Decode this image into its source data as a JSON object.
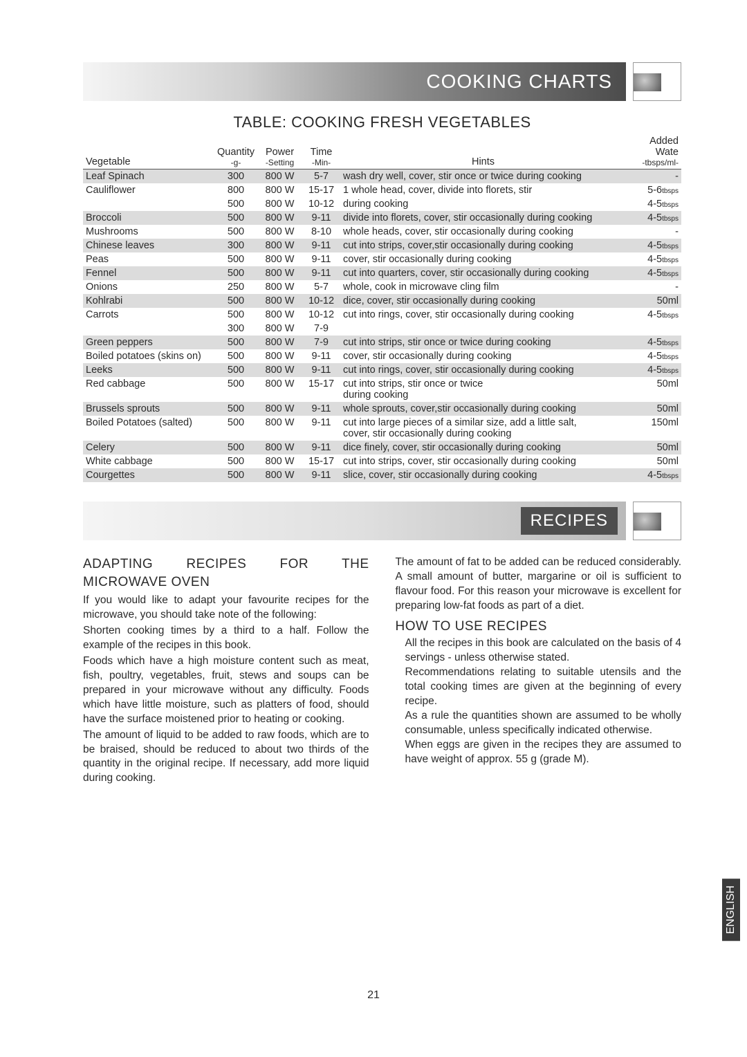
{
  "banner1": {
    "title": "COOKING CHARTS"
  },
  "tableTitle": "TABLE: COOKING FRESH VEGETABLES",
  "headers": {
    "veg": "Vegetable",
    "qty": "Quantity",
    "qtySub": "-g-",
    "power": "Power",
    "powerSub": "-Setting",
    "time": "Time",
    "timeSub": "-Min-",
    "hints": "Hints",
    "water": "Added Wate",
    "waterSub": "-tbsps/ml-"
  },
  "rows": [
    {
      "shade": true,
      "veg": "Leaf Spinach",
      "qty": "300",
      "power": "800 W",
      "time": "5-7",
      "hints": "wash dry well, cover, stir once or twice during cooking",
      "water": "-"
    },
    {
      "shade": false,
      "veg": "Cauliflower",
      "qty": "800",
      "power": "800 W",
      "time": "15-17",
      "hints": "1 whole head, cover, divide into florets, stir",
      "water": "5-6",
      "u": "tbsps"
    },
    {
      "shade": false,
      "veg": "",
      "qty": "500",
      "power": "800 W",
      "time": "10-12",
      "hints": "during cooking",
      "water": "4-5",
      "u": "tbsps"
    },
    {
      "shade": true,
      "veg": "Broccoli",
      "qty": "500",
      "power": "800 W",
      "time": "9-11",
      "hints": "divide into florets, cover, stir occasionally during cooking",
      "water": "4-5",
      "u": "tbsps"
    },
    {
      "shade": false,
      "veg": "Mushrooms",
      "qty": "500",
      "power": "800 W",
      "time": "8-10",
      "hints": "whole heads, cover, stir occasionally during cooking",
      "water": "-"
    },
    {
      "shade": true,
      "veg": "Chinese leaves",
      "qty": "300",
      "power": "800 W",
      "time": "9-11",
      "hints": "cut into strips, cover,stir occasionally during cooking",
      "water": "4-5",
      "u": "tbsps"
    },
    {
      "shade": false,
      "veg": "Peas",
      "qty": "500",
      "power": "800 W",
      "time": "9-11",
      "hints": "cover, stir occasionally during cooking",
      "water": "4-5",
      "u": "tbsps"
    },
    {
      "shade": true,
      "veg": "Fennel",
      "qty": "500",
      "power": "800 W",
      "time": "9-11",
      "hints": "cut into quarters, cover, stir occasionally during cooking",
      "water": "4-5",
      "u": "tbsps"
    },
    {
      "shade": false,
      "veg": "Onions",
      "qty": "250",
      "power": "800 W",
      "time": "5-7",
      "hints": "whole, cook in microwave cling film",
      "water": "-"
    },
    {
      "shade": true,
      "veg": "Kohlrabi",
      "qty": "500",
      "power": "800 W",
      "time": "10-12",
      "hints": "dice, cover, stir occasionally during cooking",
      "water": "50ml"
    },
    {
      "shade": false,
      "veg": "Carrots",
      "qty": "500",
      "power": "800 W",
      "time": "10-12",
      "hints": "cut into rings, cover, stir occasionally during cooking",
      "water": "4-5",
      "u": "tbsps"
    },
    {
      "shade": false,
      "veg": "",
      "qty": "300",
      "power": "800 W",
      "time": "7-9",
      "hints": "",
      "water": ""
    },
    {
      "shade": true,
      "veg": "Green peppers",
      "qty": "500",
      "power": "800 W",
      "time": "7-9",
      "hints": "cut into strips, stir once or twice during cooking",
      "water": "4-5",
      "u": "tbsps"
    },
    {
      "shade": false,
      "veg": "Boiled potatoes (skins on)",
      "qty": "500",
      "power": "800 W",
      "time": "9-11",
      "hints": "cover, stir occasionally during cooking",
      "water": "4-5",
      "u": "tbsps"
    },
    {
      "shade": true,
      "veg": "Leeks",
      "qty": "500",
      "power": "800 W",
      "time": "9-11",
      "hints": "cut into rings, cover, stir occasionally during cooking",
      "water": "4-5",
      "u": "tbsps"
    },
    {
      "shade": false,
      "veg": "Red cabbage",
      "qty": "500",
      "power": "800 W",
      "time": "15-17",
      "hints": "cut into strips, stir once or twice\n during cooking",
      "water": "50ml"
    },
    {
      "shade": true,
      "veg": "Brussels sprouts",
      "qty": "500",
      "power": "800 W",
      "time": "9-11",
      "hints": "whole sprouts, cover,stir occasionally during cooking",
      "water": "50ml"
    },
    {
      "shade": false,
      "veg": "Boiled Potatoes (salted)",
      "qty": "500",
      "power": "800 W",
      "time": "9-11",
      "hints": "cut into large pieces of a similar size, add a little salt,\ncover, stir occasionally during cooking",
      "water": "150ml"
    },
    {
      "shade": true,
      "veg": "Celery",
      "qty": "500",
      "power": "800 W",
      "time": "9-11",
      "hints": "dice finely, cover, stir occasionally during cooking",
      "water": "50ml"
    },
    {
      "shade": false,
      "veg": "White cabbage",
      "qty": "500",
      "power": "800 W",
      "time": "15-17",
      "hints": "cut into strips, cover, stir occasionally during cooking",
      "water": "50ml"
    },
    {
      "shade": true,
      "veg": "Courgettes",
      "qty": "500",
      "power": "800 W",
      "time": "9-11",
      "hints": "slice, cover, stir occasionally during cooking",
      "water": "4-5",
      "u": "tbsps"
    }
  ],
  "banner2": {
    "title": "RECIPES"
  },
  "left": {
    "h": "ADAPTING RECIPES FOR THE MICROWAVE OVEN",
    "p1": "If you would like to adapt your favourite recipes for the microwave, you should take note of the following:",
    "p2": "Shorten cooking times by a third to a half. Follow the example of the recipes in this book.",
    "p3": "Foods which have a high moisture content such as meat, fish, poultry, vegetables, fruit, stews and soups can be prepared in your microwave without any difficulty. Foods which have little moisture, such as platters of food, should have the surface moistened prior to heating or cooking.",
    "p4": "The amount of liquid to be added to raw foods, which are to be braised, should be reduced to about two thirds of the quantity in the original recipe. If necessary, add more liquid during cooking."
  },
  "right": {
    "p1": "The amount of fat to be added can be reduced considerably. A small amount of butter, margarine or oil is sufficient to flavour food. For this reason your microwave is excellent for preparing low-fat foods as part of a diet.",
    "h": "HOW TO USE RECIPES",
    "li1": "All the recipes in this book are calculated on the basis of 4 servings - unless otherwise stated.",
    "li2": "Recommendations relating to suitable utensils and the total cooking times are given at the beginning of every recipe.",
    "li3": "As a rule the quantities shown are assumed to be wholly consumable, unless specifically indicated otherwise.",
    "li4": "When eggs are given in the recipes they are assumed to have weight of approx. 55 g (grade M)."
  },
  "sideTab": "ENGLISH",
  "pageNum": "21"
}
